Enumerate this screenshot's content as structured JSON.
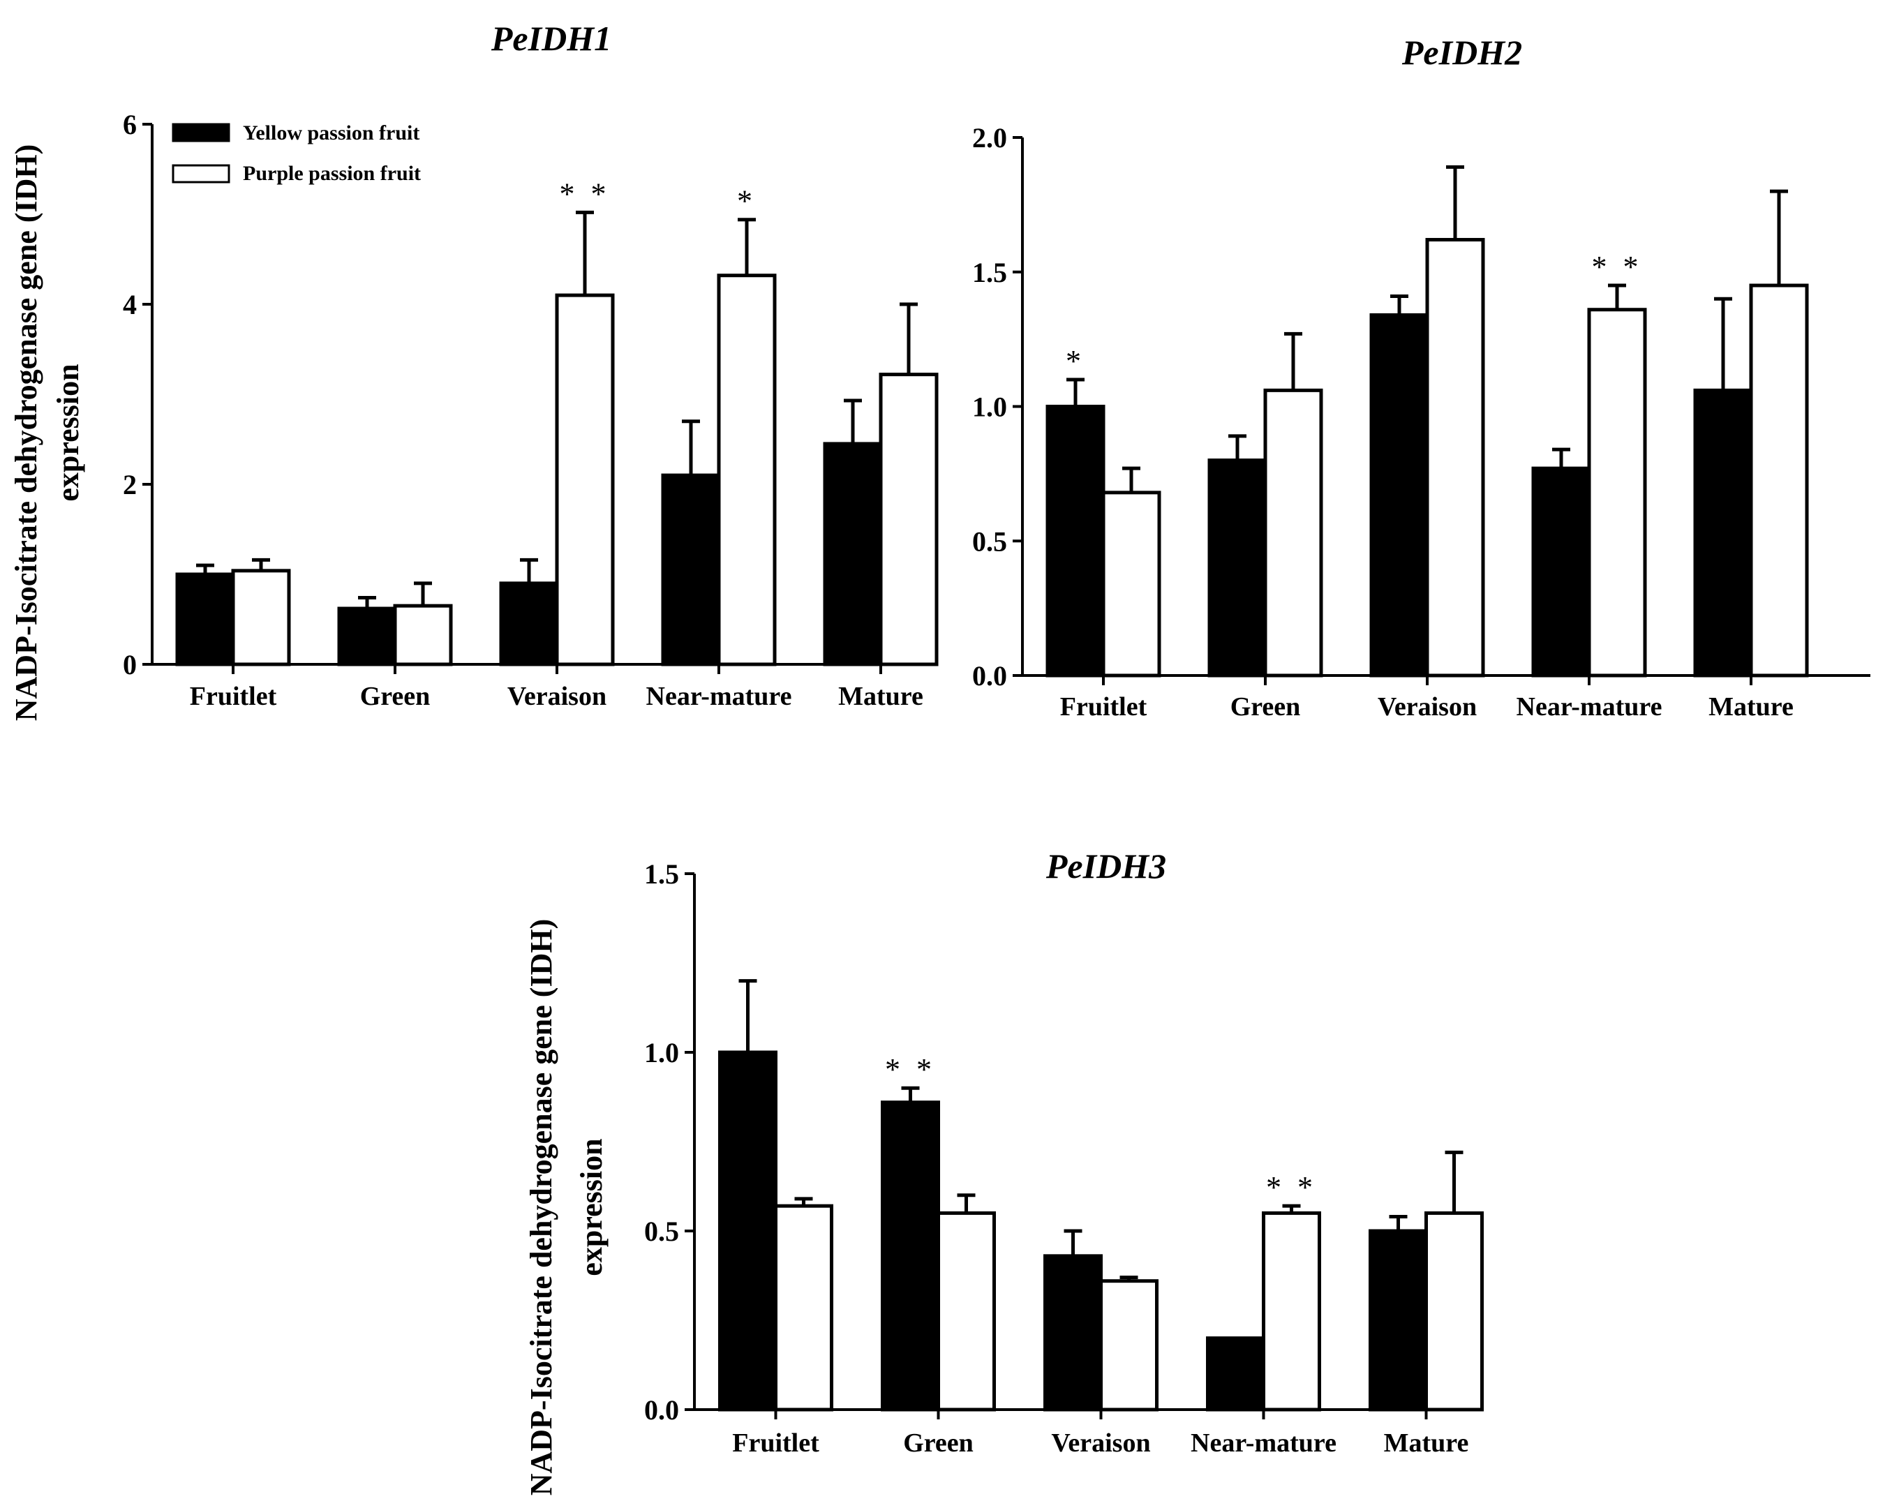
{
  "legend": {
    "yellow_label": "Yellow passion fruit",
    "purple_label": "Purple passion fruit",
    "yellow_color": "#000000",
    "purple_color": "#ffffff"
  },
  "chart_data": [
    {
      "type": "bar",
      "title": "PeIDH1",
      "xlabel": "",
      "ylabel": "NADP-Isocitrate dehydrogenase gene (IDH) expression",
      "ylabel_lines": [
        "NADP-Isocitrate dehydrogenase gene (IDH)",
        "expression"
      ],
      "categories": [
        "Fruitlet",
        "Green",
        "Veraison",
        "Near-mature",
        "Mature"
      ],
      "ylim": [
        0,
        6
      ],
      "yticks": [
        0,
        2,
        4,
        6
      ],
      "ytick_labels": [
        "0",
        "2",
        "4",
        "6"
      ],
      "series": [
        {
          "name": "Yellow passion fruit",
          "color": "#000000",
          "values": [
            1.0,
            0.62,
            0.9,
            2.1,
            2.45
          ],
          "errors": [
            0.1,
            0.12,
            0.26,
            0.6,
            0.48
          ]
        },
        {
          "name": "Purple passion fruit",
          "color": "#ffffff",
          "values": [
            1.04,
            0.65,
            4.1,
            4.32,
            3.22
          ],
          "errors": [
            0.12,
            0.25,
            0.92,
            0.62,
            0.78
          ]
        }
      ],
      "significance": [
        {
          "category": "Veraison",
          "series": "Purple passion fruit",
          "mark": "**"
        },
        {
          "category": "Near-mature",
          "series": "Purple passion fruit",
          "mark": "*"
        }
      ]
    },
    {
      "type": "bar",
      "title": "PeIDH2",
      "xlabel": "",
      "ylabel": "",
      "categories": [
        "Fruitlet",
        "Green",
        "Veraison",
        "Near-mature",
        "Mature"
      ],
      "ylim": [
        0,
        2
      ],
      "yticks": [
        0,
        0.5,
        1,
        1.5,
        2
      ],
      "ytick_labels": [
        "0.0",
        "0.5",
        "1.0",
        "1.5",
        "2.0"
      ],
      "series": [
        {
          "name": "Yellow passion fruit",
          "color": "#000000",
          "values": [
            1.0,
            0.8,
            1.34,
            0.77,
            1.06
          ],
          "errors": [
            0.1,
            0.09,
            0.07,
            0.07,
            0.34
          ]
        },
        {
          "name": "Purple passion fruit",
          "color": "#ffffff",
          "values": [
            0.68,
            1.06,
            1.62,
            1.36,
            1.45
          ],
          "errors": [
            0.09,
            0.21,
            0.27,
            0.09,
            0.35
          ]
        }
      ],
      "significance": [
        {
          "category": "Fruitlet",
          "series": "Yellow passion fruit",
          "mark": "*"
        },
        {
          "category": "Near-mature",
          "series": "Purple passion fruit",
          "mark": "**"
        }
      ]
    },
    {
      "type": "bar",
      "title": "PeIDH3",
      "xlabel": "",
      "ylabel": "NADP-Isocitrate dehydrogenase gene (IDH) expression",
      "ylabel_lines": [
        "NADP-Isocitrate dehydrogenase gene (IDH)",
        "expression"
      ],
      "categories": [
        "Fruitlet",
        "Green",
        "Veraison",
        "Near-mature",
        "Mature"
      ],
      "ylim": [
        0,
        1.5
      ],
      "yticks": [
        0,
        0.5,
        1,
        1.5
      ],
      "ytick_labels": [
        "0.0",
        "0.5",
        "1.0",
        "1.5"
      ],
      "series": [
        {
          "name": "Yellow passion fruit",
          "color": "#000000",
          "values": [
            1.0,
            0.86,
            0.43,
            0.2,
            0.5
          ],
          "errors": [
            0.2,
            0.04,
            0.07,
            0.0,
            0.04
          ]
        },
        {
          "name": "Purple passion fruit",
          "color": "#ffffff",
          "values": [
            0.57,
            0.55,
            0.36,
            0.55,
            0.55
          ],
          "errors": [
            0.02,
            0.05,
            0.01,
            0.02,
            0.17
          ]
        }
      ],
      "significance": [
        {
          "category": "Green",
          "series": "Yellow passion fruit",
          "mark": "**"
        },
        {
          "category": "Near-mature",
          "series": "Purple passion fruit",
          "mark": "**"
        }
      ]
    }
  ]
}
